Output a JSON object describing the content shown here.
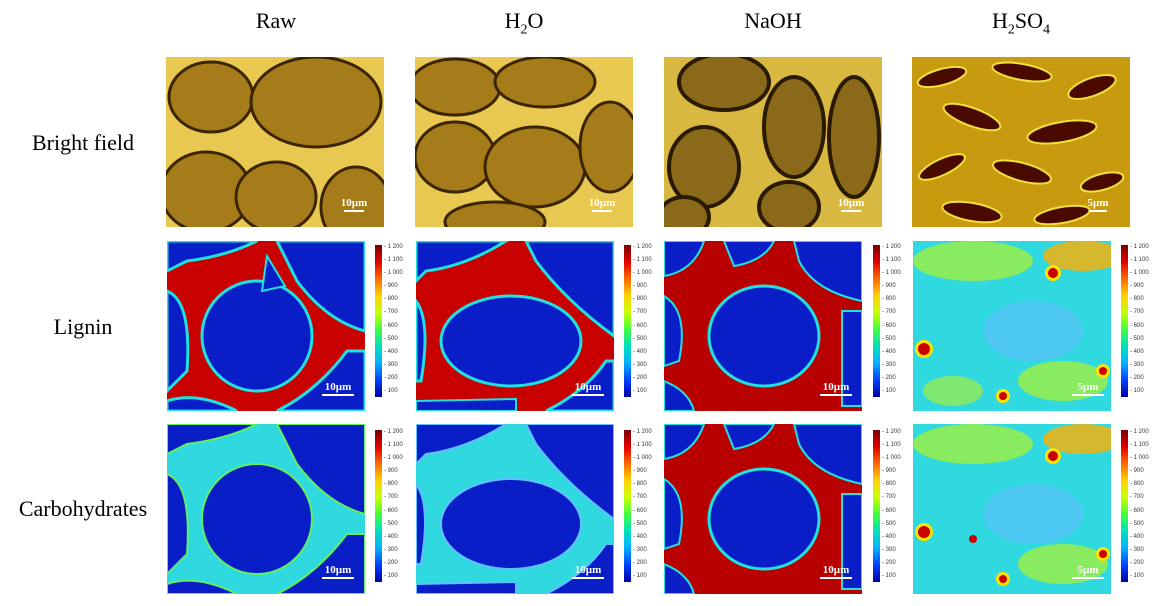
{
  "columns": [
    "Raw",
    "H2O",
    "NaOH",
    "H2SO4"
  ],
  "rows": [
    "Bright field",
    "Lignin",
    "Carbohydrates"
  ],
  "scale_bars": {
    "bright": [
      "10µm",
      "10µm",
      "10µm",
      "5µm"
    ],
    "lignin": [
      "10µm",
      "10µm",
      "10µm",
      "5µm"
    ],
    "carbo": [
      "10µm",
      "10µm",
      "10µm",
      "5µm"
    ]
  },
  "colorbar_ticks": [
    "1 200",
    "1 100",
    "1 000",
    "900",
    "800",
    "700",
    "600",
    "500",
    "400",
    "300",
    "200",
    "100"
  ],
  "colors": {
    "brightfield_bg": "#a67c1a",
    "cell_wall": "#f0d060",
    "map_low": "#0a1ec8",
    "map_mid": "#20e0e0",
    "map_high": "#c80000"
  }
}
